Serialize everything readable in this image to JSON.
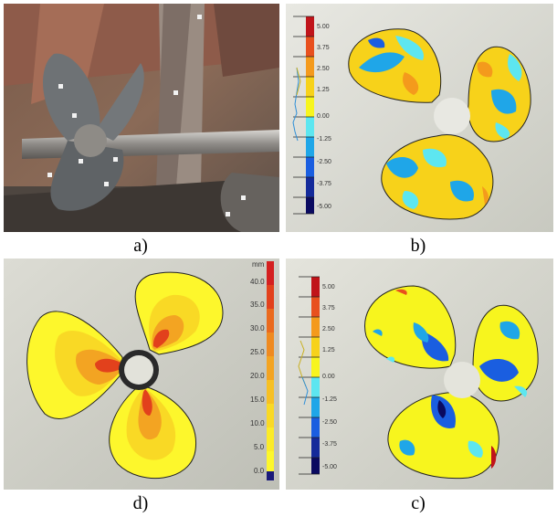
{
  "captions": {
    "a": "a)",
    "b": "b)",
    "c": "c)",
    "d": "d)"
  },
  "deviation_scale": {
    "ticks": [
      "5.00",
      "3.75",
      "2.50",
      "1.25",
      "0.00",
      "-1.25",
      "-2.50",
      "-3.75",
      "-5.00"
    ],
    "colors": [
      "#c0141a",
      "#e8501e",
      "#f49a1c",
      "#f7d21a",
      "#f7f51e",
      "#5de6f0",
      "#1fa6e8",
      "#1a5ee0",
      "#142a9a",
      "#0a0a60"
    ]
  },
  "thickness_scale": {
    "unit": "mm",
    "ticks": [
      "40.0",
      "35.0",
      "30.0",
      "25.0",
      "20.0",
      "15.0",
      "10.0",
      "5.0",
      "0.0"
    ],
    "colors": [
      "#d42020",
      "#e2411c",
      "#ea6a1e",
      "#ef8a20",
      "#f3a422",
      "#f7c023",
      "#f9d925",
      "#fbeb28",
      "#fdf72c",
      "#1a1a7a"
    ]
  }
}
